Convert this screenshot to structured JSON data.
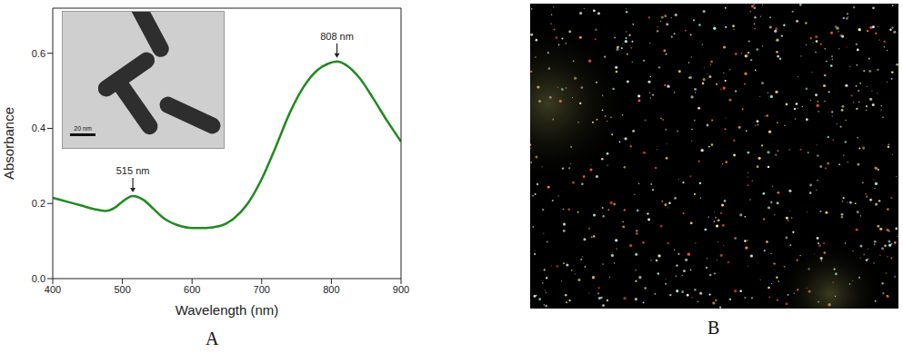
{
  "chart_data": {
    "type": "line",
    "x": [
      400,
      420,
      440,
      460,
      475,
      490,
      500,
      515,
      530,
      545,
      560,
      580,
      600,
      620,
      640,
      660,
      680,
      700,
      720,
      740,
      760,
      780,
      795,
      808,
      820,
      840,
      860,
      880,
      900
    ],
    "values": [
      0.215,
      0.205,
      0.195,
      0.185,
      0.18,
      0.19,
      0.205,
      0.22,
      0.21,
      0.185,
      0.16,
      0.142,
      0.135,
      0.135,
      0.14,
      0.16,
      0.2,
      0.265,
      0.35,
      0.44,
      0.51,
      0.555,
      0.572,
      0.578,
      0.57,
      0.535,
      0.48,
      0.42,
      0.365
    ],
    "color": "#1f8a1f",
    "xlim": [
      400,
      900
    ],
    "xticks": [
      400,
      500,
      600,
      700,
      800,
      900
    ],
    "ylim": [
      0,
      0.72
    ],
    "yticks": [
      {
        "value": 0,
        "label": "0.0"
      },
      0.2,
      0.4,
      0.6
    ],
    "x_label": "Wavelength (nm)",
    "y_label": "Absorbance",
    "grid": false,
    "annotations": [
      {
        "text": "515 nm",
        "x": 515,
        "y": 0.22
      },
      {
        "text": "808 nm",
        "x": 808,
        "y": 0.578
      }
    ]
  },
  "inset": {
    "scale_bar_label": "20 nm"
  },
  "panels": {
    "chart": "A",
    "image": "B"
  }
}
